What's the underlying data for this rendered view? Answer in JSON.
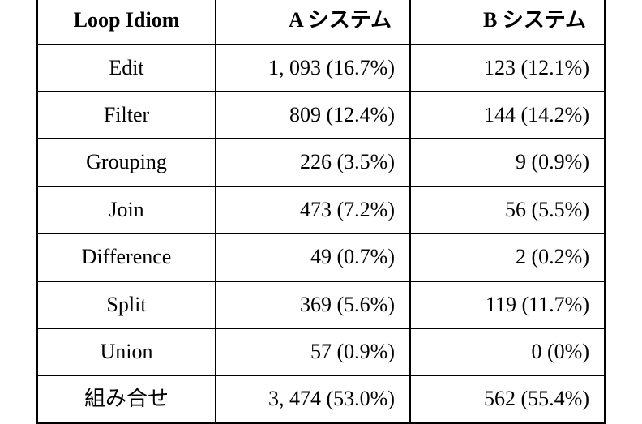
{
  "table": {
    "type": "table",
    "border_color": "#000000",
    "background_color": "#ffffff",
    "font_family": "Times New Roman, Century, serif",
    "header_fontsize": 26,
    "cell_fontsize": 26,
    "header_fontweight": "bold",
    "columns": [
      {
        "key": "idiom",
        "label": "Loop Idiom",
        "align": "center"
      },
      {
        "key": "sysA",
        "label": "A システム",
        "align": "right"
      },
      {
        "key": "sysB",
        "label": "B システム",
        "align": "right"
      }
    ],
    "rows": [
      {
        "idiom": "Edit",
        "a_count": "1, 093",
        "a_pct": "(16.7%)",
        "b_count": "123",
        "b_pct": "(12.1%)"
      },
      {
        "idiom": "Filter",
        "a_count": "809",
        "a_pct": "(12.4%)",
        "b_count": "144",
        "b_pct": "(14.2%)"
      },
      {
        "idiom": "Grouping",
        "a_count": "226",
        "a_pct": "(3.5%)",
        "b_count": "9",
        "b_pct": "(0.9%)"
      },
      {
        "idiom": "Join",
        "a_count": "473",
        "a_pct": "(7.2%)",
        "b_count": "56",
        "b_pct": "(5.5%)"
      },
      {
        "idiom": "Difference",
        "a_count": "49",
        "a_pct": "(0.7%)",
        "b_count": "2",
        "b_pct": "(0.2%)"
      },
      {
        "idiom": "Split",
        "a_count": "369",
        "a_pct": "(5.6%)",
        "b_count": "119",
        "b_pct": "(11.7%)"
      },
      {
        "idiom": "Union",
        "a_count": "57",
        "a_pct": "(0.9%)",
        "b_count": "0",
        "b_pct": "(0%)"
      },
      {
        "idiom": "組み合せ",
        "a_count": "3, 474",
        "a_pct": "(53.0%)",
        "b_count": "562",
        "b_pct": "(55.4%)"
      }
    ]
  }
}
